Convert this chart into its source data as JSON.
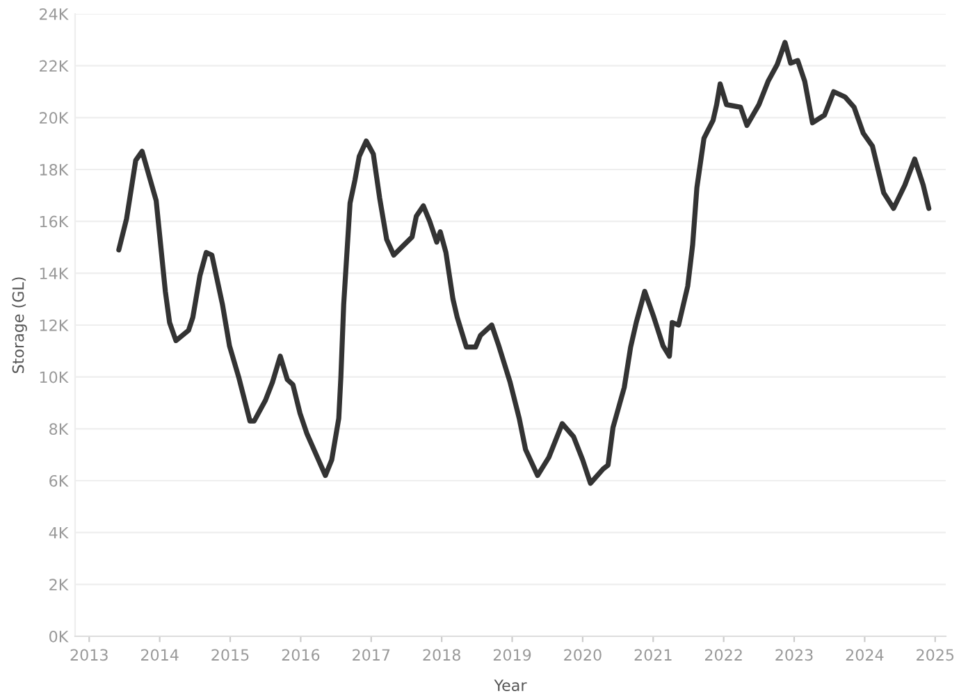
{
  "chart_data": {
    "type": "line",
    "xlabel": "Year",
    "ylabel": "Storage (GL)",
    "x": [
      2013.42,
      2013.53,
      2013.66,
      2013.75,
      2013.95,
      2014.08,
      2014.14,
      2014.23,
      2014.41,
      2014.47,
      2014.57,
      2014.66,
      2014.74,
      2014.89,
      2014.99,
      2015.12,
      2015.28,
      2015.34,
      2015.5,
      2015.6,
      2015.71,
      2015.81,
      2015.89,
      2015.99,
      2016.09,
      2016.35,
      2016.44,
      2016.54,
      2016.57,
      2016.61,
      2016.7,
      2016.77,
      2016.83,
      2016.93,
      2017.03,
      2017.12,
      2017.22,
      2017.32,
      2017.45,
      2017.58,
      2017.64,
      2017.74,
      2017.83,
      2017.93,
      2017.98,
      2018.06,
      2018.16,
      2018.22,
      2018.35,
      2018.48,
      2018.55,
      2018.71,
      2018.81,
      2018.97,
      2019.1,
      2019.19,
      2019.36,
      2019.52,
      2019.71,
      2019.87,
      2020.0,
      2020.11,
      2020.29,
      2020.36,
      2020.43,
      2020.59,
      2020.68,
      2020.76,
      2020.88,
      2021.01,
      2021.14,
      2021.23,
      2021.27,
      2021.36,
      2021.49,
      2021.56,
      2021.62,
      2021.72,
      2021.85,
      2021.9,
      2021.95,
      2022.04,
      2022.24,
      2022.33,
      2022.5,
      2022.63,
      2022.76,
      2022.87,
      2022.95,
      2023.05,
      2023.15,
      2023.26,
      2023.43,
      2023.56,
      2023.72,
      2023.85,
      2023.98,
      2024.11,
      2024.27,
      2024.41,
      2024.57,
      2024.71,
      2024.83,
      2024.91
    ],
    "series": [
      {
        "color": "#333333",
        "values": [
          14900,
          16100,
          18350,
          18700,
          16800,
          13300,
          12100,
          11400,
          11800,
          12300,
          13900,
          14800,
          14700,
          12800,
          11200,
          10000,
          8300,
          8300,
          9100,
          9800,
          10800,
          9900,
          9700,
          8600,
          7800,
          6200,
          6800,
          8400,
          10000,
          12800,
          16700,
          17600,
          18500,
          19100,
          18600,
          16900,
          15300,
          14700,
          15050,
          15400,
          16200,
          16600,
          16000,
          15200,
          15600,
          14800,
          13000,
          12300,
          11150,
          11150,
          11600,
          12000,
          11200,
          9800,
          8400,
          7200,
          6200,
          6900,
          8200,
          7700,
          6800,
          5900,
          6450,
          6600,
          8050,
          9600,
          11150,
          12100,
          13300,
          12300,
          11200,
          10800,
          12100,
          12000,
          13500,
          15100,
          17300,
          19200,
          19900,
          20500,
          21300,
          20500,
          20400,
          19700,
          20500,
          21400,
          22050,
          22900,
          22100,
          22200,
          21400,
          19800,
          20100,
          21000,
          20800,
          20400,
          19400,
          18900,
          17100,
          16500,
          17400,
          18400,
          17400,
          16500
        ]
      }
    ],
    "xlim": [
      2012.8,
      2025.15
    ],
    "xticks": [
      2013,
      2014,
      2015,
      2016,
      2017,
      2018,
      2019,
      2020,
      2021,
      2022,
      2023,
      2024,
      2025
    ],
    "ylim": [
      0,
      24000
    ],
    "yticks": [
      {
        "value": 0,
        "label": "0K"
      },
      {
        "value": 2000,
        "label": "2K"
      },
      {
        "value": 4000,
        "label": "4K"
      },
      {
        "value": 6000,
        "label": "6K"
      },
      {
        "value": 8000,
        "label": "8K"
      },
      {
        "value": 10000,
        "label": "10K"
      },
      {
        "value": 12000,
        "label": "12K"
      },
      {
        "value": 14000,
        "label": "14K"
      },
      {
        "value": 16000,
        "label": "16K"
      },
      {
        "value": 18000,
        "label": "18K"
      },
      {
        "value": 20000,
        "label": "20K"
      },
      {
        "value": 22000,
        "label": "22K"
      },
      {
        "value": 24000,
        "label": "24K"
      }
    ],
    "grid": "y",
    "marker": "none",
    "line_style": "solid"
  }
}
